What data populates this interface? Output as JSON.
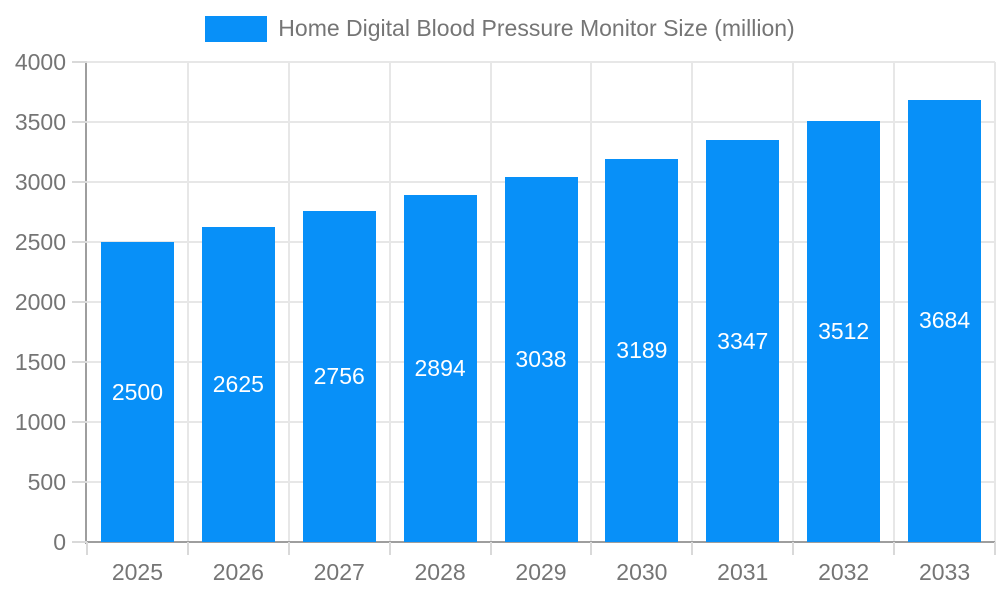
{
  "chart_data": {
    "type": "bar",
    "title": "Home Digital Blood Pressure Monitor Size (million)",
    "legend_entries": [
      "Home Digital Blood Pressure Monitor Size (million)"
    ],
    "legend_position": "top-center",
    "categories": [
      "2025",
      "2026",
      "2027",
      "2028",
      "2029",
      "2030",
      "2031",
      "2032",
      "2033"
    ],
    "values": [
      2500,
      2625,
      2756,
      2894,
      3038,
      3189,
      3347,
      3512,
      3684
    ],
    "value_labels_inside_bars": true,
    "xlabel": "",
    "ylabel": "",
    "ylim": [
      0,
      4000
    ],
    "yticks": [
      0,
      500,
      1000,
      1500,
      2000,
      2500,
      3000,
      3500,
      4000
    ],
    "grid": true,
    "colors": {
      "bar": "#0890F8",
      "value_label": "#FFFFFF",
      "axis_line": "#9E9E9E",
      "grid_line": "#E7E7E7",
      "tick_mark": "#D9D9D9",
      "axis_text": "#757575",
      "background": "#FFFFFF"
    }
  }
}
